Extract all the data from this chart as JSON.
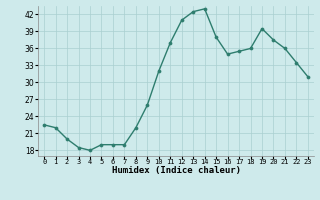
{
  "x": [
    0,
    1,
    2,
    3,
    4,
    5,
    6,
    7,
    8,
    9,
    10,
    11,
    12,
    13,
    14,
    15,
    16,
    17,
    18,
    19,
    20,
    21,
    22,
    23
  ],
  "y": [
    22.5,
    22,
    20,
    18.5,
    18,
    19,
    19,
    19,
    22,
    26,
    32,
    37,
    41,
    42.5,
    43,
    38,
    35,
    35.5,
    36,
    39.5,
    37.5,
    36,
    33.5,
    31
  ],
  "xlabel": "Humidex (Indice chaleur)",
  "ylim": [
    17,
    43.5
  ],
  "xlim": [
    -0.5,
    23.5
  ],
  "yticks": [
    18,
    21,
    24,
    27,
    30,
    33,
    36,
    39,
    42
  ],
  "xtick_labels": [
    "0",
    "1",
    "2",
    "3",
    "4",
    "5",
    "6",
    "7",
    "8",
    "9",
    "10",
    "11",
    "12",
    "13",
    "14",
    "15",
    "16",
    "17",
    "18",
    "19",
    "20",
    "21",
    "22",
    "23"
  ],
  "line_color": "#2e7d6e",
  "marker_color": "#2e7d6e",
  "bg_color": "#ceeaeb",
  "grid_color": "#aacfd0"
}
